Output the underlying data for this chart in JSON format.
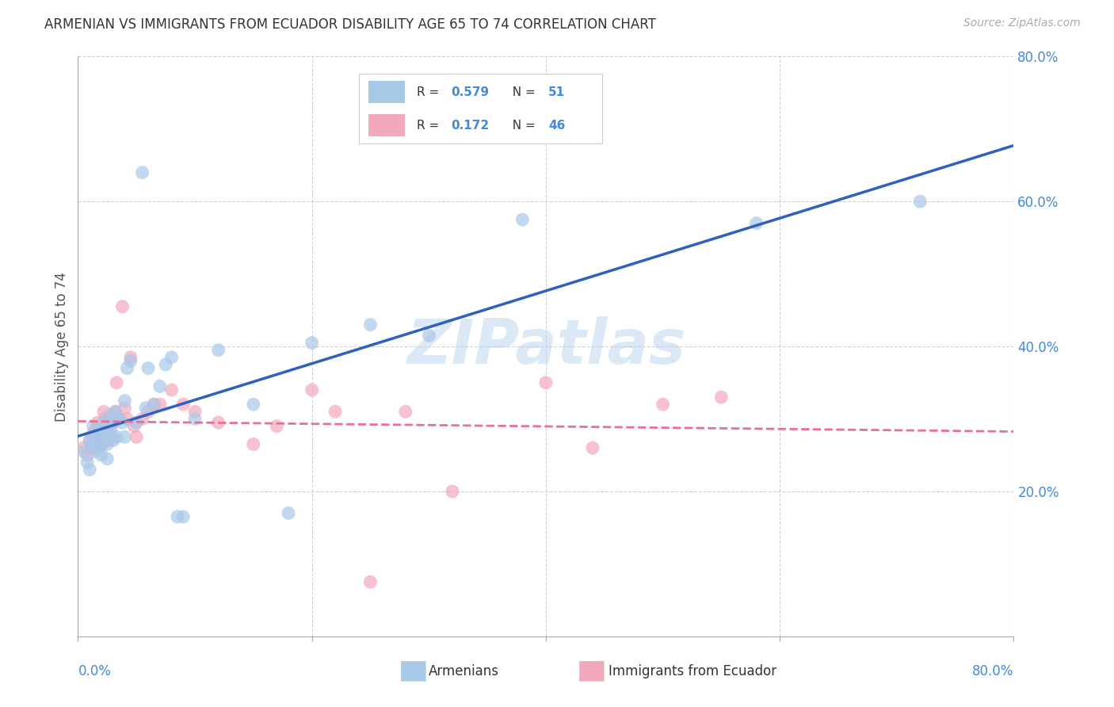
{
  "title": "ARMENIAN VS IMMIGRANTS FROM ECUADOR DISABILITY AGE 65 TO 74 CORRELATION CHART",
  "source": "Source: ZipAtlas.com",
  "ylabel": "Disability Age 65 to 74",
  "xlim": [
    0.0,
    0.8
  ],
  "ylim": [
    0.0,
    0.8
  ],
  "xtick_vals": [
    0.0,
    0.2,
    0.4,
    0.6,
    0.8
  ],
  "ytick_vals": [
    0.2,
    0.4,
    0.6,
    0.8
  ],
  "r_armenian": 0.579,
  "n_armenian": 51,
  "r_ecuador": 0.172,
  "n_ecuador": 46,
  "color_armenian": "#a8c8e8",
  "color_ecuador": "#f4a8bc",
  "line_color_armenian": "#3060c0",
  "line_color_ecuador": "#e87090",
  "watermark": "ZIPatlas",
  "armenian_x": [
    0.005,
    0.008,
    0.01,
    0.01,
    0.012,
    0.013,
    0.015,
    0.015,
    0.015,
    0.018,
    0.018,
    0.02,
    0.02,
    0.02,
    0.022,
    0.023,
    0.025,
    0.025,
    0.025,
    0.027,
    0.028,
    0.03,
    0.03,
    0.032,
    0.033,
    0.035,
    0.038,
    0.04,
    0.04,
    0.042,
    0.045,
    0.05,
    0.055,
    0.058,
    0.06,
    0.065,
    0.07,
    0.075,
    0.08,
    0.085,
    0.09,
    0.1,
    0.12,
    0.15,
    0.18,
    0.2,
    0.25,
    0.3,
    0.38,
    0.58,
    0.72
  ],
  "armenian_y": [
    0.255,
    0.24,
    0.27,
    0.23,
    0.265,
    0.29,
    0.255,
    0.265,
    0.275,
    0.285,
    0.26,
    0.28,
    0.25,
    0.265,
    0.295,
    0.275,
    0.285,
    0.265,
    0.245,
    0.305,
    0.285,
    0.295,
    0.27,
    0.31,
    0.275,
    0.3,
    0.295,
    0.325,
    0.275,
    0.37,
    0.38,
    0.295,
    0.64,
    0.315,
    0.37,
    0.32,
    0.345,
    0.375,
    0.385,
    0.165,
    0.165,
    0.3,
    0.395,
    0.32,
    0.17,
    0.405,
    0.43,
    0.415,
    0.575,
    0.57,
    0.6
  ],
  "ecuador_x": [
    0.005,
    0.008,
    0.01,
    0.012,
    0.013,
    0.015,
    0.015,
    0.017,
    0.018,
    0.02,
    0.02,
    0.022,
    0.023,
    0.025,
    0.025,
    0.028,
    0.03,
    0.03,
    0.032,
    0.033,
    0.035,
    0.038,
    0.04,
    0.042,
    0.045,
    0.048,
    0.05,
    0.055,
    0.06,
    0.065,
    0.07,
    0.08,
    0.09,
    0.1,
    0.12,
    0.15,
    0.17,
    0.2,
    0.22,
    0.25,
    0.28,
    0.32,
    0.4,
    0.44,
    0.5,
    0.55
  ],
  "ecuador_y": [
    0.26,
    0.25,
    0.27,
    0.26,
    0.28,
    0.26,
    0.285,
    0.295,
    0.275,
    0.29,
    0.265,
    0.31,
    0.3,
    0.285,
    0.27,
    0.295,
    0.295,
    0.275,
    0.31,
    0.35,
    0.3,
    0.455,
    0.315,
    0.3,
    0.385,
    0.29,
    0.275,
    0.3,
    0.31,
    0.32,
    0.32,
    0.34,
    0.32,
    0.31,
    0.295,
    0.265,
    0.29,
    0.34,
    0.31,
    0.075,
    0.31,
    0.2,
    0.35,
    0.26,
    0.32,
    0.33
  ]
}
